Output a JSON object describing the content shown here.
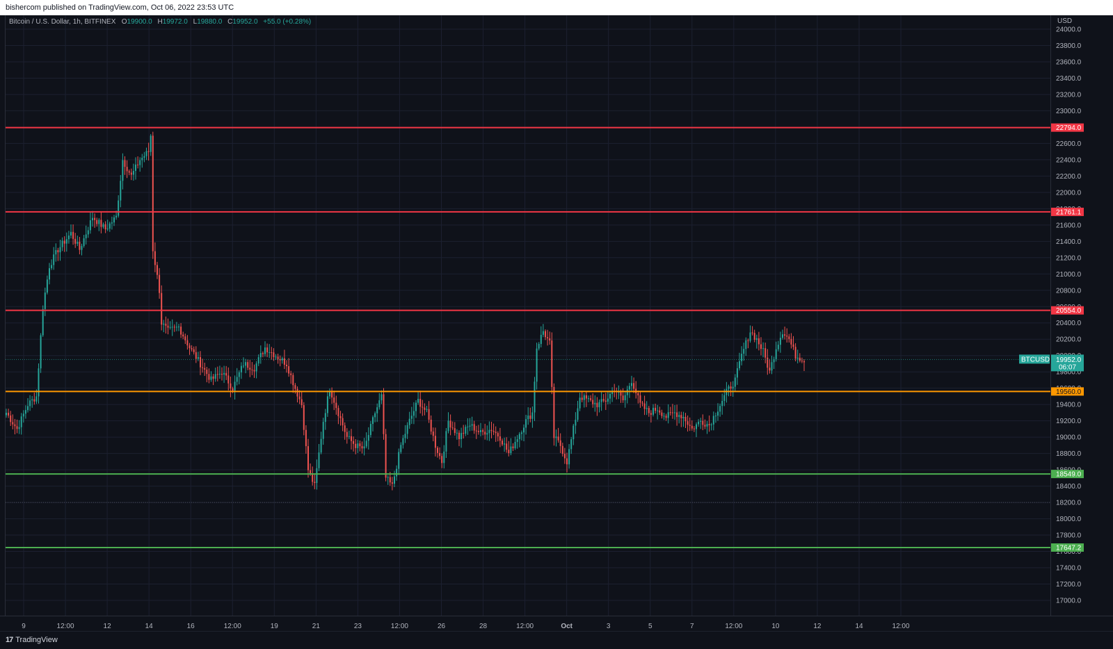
{
  "publisher_line": "bishercom published on TradingView.com, Oct 06, 2022 23:53 UTC",
  "legend": {
    "symbol_desc": "Bitcoin / U.S. Dollar, 1h, BITFINEX",
    "open_key": "O",
    "open": "19900.0",
    "high_key": "H",
    "high": "19972.0",
    "low_key": "L",
    "low": "19880.0",
    "close_key": "C",
    "close": "19952.0",
    "change": "+55.0 (+0.28%)"
  },
  "brand": {
    "icon": "17",
    "label": "TradingView"
  },
  "colors": {
    "background": "#0f121a",
    "grid": "#1c2030",
    "up": "#26a69a",
    "down": "#ef5350",
    "resistance": "#f23645",
    "pivot": "#ff9800",
    "support": "#4caf50"
  },
  "chart_data": {
    "type": "candlestick",
    "currency_label": "USD",
    "ylim": [
      17000,
      24000
    ],
    "y_ticks": [
      17000,
      17200,
      17400,
      17600,
      17800,
      18000,
      18200,
      18400,
      18600,
      18800,
      19000,
      19200,
      19400,
      19600,
      19800,
      20000,
      20200,
      20400,
      20600,
      20800,
      21000,
      21200,
      21400,
      21600,
      21800,
      22000,
      22200,
      22400,
      22600,
      22800,
      23000,
      23200,
      23400,
      23600,
      23800,
      24000
    ],
    "x_tick_labels": [
      "9",
      "12:00",
      "12",
      "14",
      "16",
      "12:00",
      "19",
      "21",
      "23",
      "12:00",
      "26",
      "28",
      "12:00",
      "Oct",
      "3",
      "5",
      "7",
      "12:00",
      "10",
      "12",
      "14",
      "12:00"
    ],
    "horizontal_levels": [
      {
        "value": 22794.0,
        "label": "22794.0",
        "kind": "resistance"
      },
      {
        "value": 21761.1,
        "label": "21761.1",
        "kind": "resistance"
      },
      {
        "value": 20554.0,
        "label": "20554.0",
        "kind": "resistance"
      },
      {
        "value": 19560.0,
        "label": "19560.0",
        "kind": "pivot"
      },
      {
        "value": 18549.0,
        "label": "18549.0",
        "kind": "support"
      },
      {
        "value": 17647.2,
        "label": "17647.2",
        "kind": "support"
      }
    ],
    "low_marker": 18200,
    "current_price": {
      "symbol": "BTCUSD",
      "value": 19952.0,
      "label": "19952.0",
      "countdown": "06:07"
    },
    "anchors": [
      [
        0,
        19300
      ],
      [
        5,
        19100
      ],
      [
        10,
        19400
      ],
      [
        14,
        19500
      ],
      [
        17,
        20600
      ],
      [
        20,
        21100
      ],
      [
        24,
        21300
      ],
      [
        30,
        21500
      ],
      [
        34,
        21300
      ],
      [
        40,
        21700
      ],
      [
        46,
        21550
      ],
      [
        51,
        21700
      ],
      [
        54,
        22400
      ],
      [
        58,
        22200
      ],
      [
        62,
        22400
      ],
      [
        66,
        22500
      ],
      [
        67,
        22700
      ],
      [
        68,
        21300
      ],
      [
        71,
        20800
      ],
      [
        72,
        20400
      ],
      [
        75,
        20300
      ],
      [
        80,
        20350
      ],
      [
        85,
        20100
      ],
      [
        90,
        19900
      ],
      [
        95,
        19700
      ],
      [
        100,
        19800
      ],
      [
        105,
        19600
      ],
      [
        110,
        19900
      ],
      [
        115,
        19850
      ],
      [
        120,
        20100
      ],
      [
        125,
        20000
      ],
      [
        130,
        19900
      ],
      [
        134,
        19600
      ],
      [
        137,
        19400
      ],
      [
        140,
        18600
      ],
      [
        143,
        18400
      ],
      [
        147,
        19200
      ],
      [
        150,
        19600
      ],
      [
        154,
        19300
      ],
      [
        158,
        19000
      ],
      [
        162,
        18900
      ],
      [
        166,
        18850
      ],
      [
        171,
        19300
      ],
      [
        174,
        19500
      ],
      [
        176,
        18500
      ],
      [
        179,
        18400
      ],
      [
        183,
        18900
      ],
      [
        187,
        19200
      ],
      [
        191,
        19450
      ],
      [
        195,
        19300
      ],
      [
        199,
        18900
      ],
      [
        202,
        18700
      ],
      [
        205,
        19200
      ],
      [
        210,
        19000
      ],
      [
        215,
        19150
      ],
      [
        220,
        19050
      ],
      [
        225,
        19100
      ],
      [
        229,
        19000
      ],
      [
        233,
        18800
      ],
      [
        237,
        19000
      ],
      [
        241,
        19200
      ],
      [
        244,
        19300
      ],
      [
        246,
        20100
      ],
      [
        249,
        20300
      ],
      [
        252,
        20150
      ],
      [
        254,
        19000
      ],
      [
        257,
        18900
      ],
      [
        260,
        18700
      ],
      [
        263,
        19100
      ],
      [
        266,
        19500
      ],
      [
        270,
        19450
      ],
      [
        274,
        19400
      ],
      [
        278,
        19450
      ],
      [
        282,
        19600
      ],
      [
        286,
        19450
      ],
      [
        290,
        19700
      ],
      [
        294,
        19400
      ],
      [
        298,
        19300
      ],
      [
        302,
        19350
      ],
      [
        306,
        19250
      ],
      [
        310,
        19300
      ],
      [
        314,
        19250
      ],
      [
        318,
        19100
      ],
      [
        322,
        19200
      ],
      [
        326,
        19150
      ],
      [
        330,
        19350
      ],
      [
        334,
        19550
      ],
      [
        338,
        19700
      ],
      [
        341,
        20000
      ],
      [
        345,
        20300
      ],
      [
        348,
        20200
      ],
      [
        351,
        20050
      ],
      [
        354,
        19800
      ],
      [
        357,
        20100
      ],
      [
        360,
        20300
      ],
      [
        363,
        20200
      ],
      [
        366,
        20000
      ],
      [
        370,
        19950
      ]
    ]
  }
}
